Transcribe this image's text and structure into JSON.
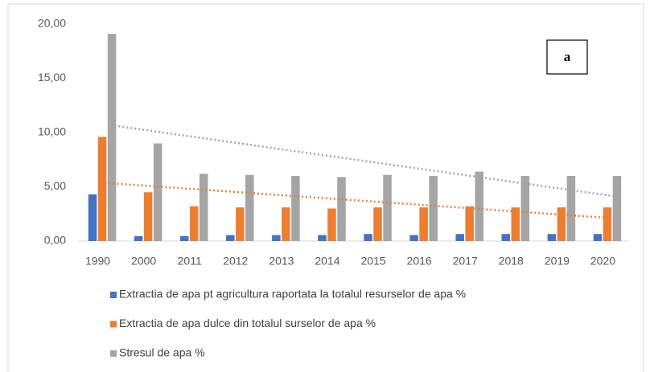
{
  "chart_data": {
    "type": "bar",
    "annotation": "a",
    "categories": [
      "1990",
      "2000",
      "2011",
      "2012",
      "2013",
      "2014",
      "2015",
      "2016",
      "2017",
      "2018",
      "2019",
      "2020"
    ],
    "series": [
      {
        "name": "Extractia de apa pt agricultura raportata la totalul resurselor de apa  %",
        "color": "#4472c4",
        "values": [
          4.3,
          0.45,
          0.45,
          0.55,
          0.55,
          0.55,
          0.65,
          0.55,
          0.65,
          0.65,
          0.65,
          0.65
        ],
        "trendline": false
      },
      {
        "name": "Extractia de apa dulce din totalul surselor de apa  %",
        "color": "#ed7d31",
        "values": [
          9.6,
          4.5,
          3.2,
          3.1,
          3.1,
          3.0,
          3.1,
          3.1,
          3.2,
          3.1,
          3.1,
          3.1
        ],
        "trendline": true
      },
      {
        "name": "Stresul de apa  %",
        "color": "#a5a5a5",
        "values": [
          19.1,
          9.0,
          6.2,
          6.1,
          6.0,
          5.9,
          6.1,
          6.0,
          6.4,
          6.0,
          6.0,
          6.0
        ],
        "trendline": true
      }
    ],
    "ylim": [
      0,
      20
    ],
    "yticks": [
      {
        "value": 0,
        "label": "0,00"
      },
      {
        "value": 5,
        "label": "5,00"
      },
      {
        "value": 10,
        "label": "10,00"
      },
      {
        "value": 15,
        "label": "15,00"
      },
      {
        "value": 20,
        "label": "20,00"
      }
    ],
    "grid": false,
    "legend": "bottom"
  }
}
